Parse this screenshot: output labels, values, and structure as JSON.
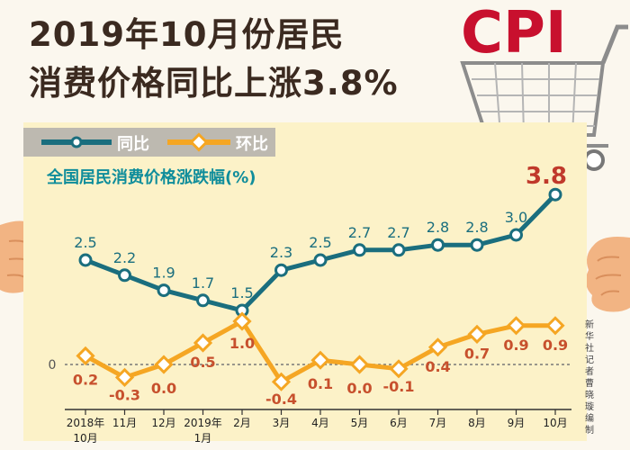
{
  "title_line1": "2019年10月份居民",
  "title_line2": "消费价格同比上涨3.8%",
  "chart_label": "全国居民消费价格涨跌幅(%)",
  "legend": {
    "yoy": "同比",
    "mom": "环比"
  },
  "credit": "新华社记者 曹晓璇 编制",
  "cart_letters": "CPI",
  "colors": {
    "yoy": "#1a6e7e",
    "mom": "#f5a623",
    "title": "#3b2a20",
    "value_red": "#c0392b"
  },
  "chart_data": {
    "type": "line",
    "title": "全国居民消费价格涨跌幅(%)",
    "categories": [
      "2018年10月",
      "11月",
      "12月",
      "2019年1月",
      "2月",
      "3月",
      "4月",
      "5月",
      "6月",
      "7月",
      "8月",
      "9月",
      "10月"
    ],
    "series": [
      {
        "name": "同比",
        "values": [
          2.5,
          2.2,
          1.9,
          1.7,
          1.5,
          2.3,
          2.5,
          2.7,
          2.7,
          2.8,
          2.8,
          3.0,
          3.8
        ]
      },
      {
        "name": "环比",
        "values": [
          0.2,
          -0.3,
          0.0,
          0.5,
          1.0,
          -0.4,
          0.1,
          0.0,
          -0.1,
          0.4,
          0.7,
          0.9,
          0.9
        ]
      }
    ],
    "value_labels": {
      "yoy": [
        "2.5",
        "2.2",
        "1.9",
        "1.7",
        "1.5",
        "2.3",
        "2.5",
        "2.7",
        "2.7",
        "2.8",
        "2.8",
        "3.0",
        "3.8"
      ],
      "mom": [
        "0.2",
        "-0.3",
        "0.0",
        "0.5",
        "1.0",
        "-0.4",
        "0.1",
        "0.0",
        "-0.1",
        "0.4",
        "0.7",
        "0.9",
        "0.9"
      ]
    },
    "zero_label": "0",
    "grid": false,
    "legend_position": "top-left"
  }
}
